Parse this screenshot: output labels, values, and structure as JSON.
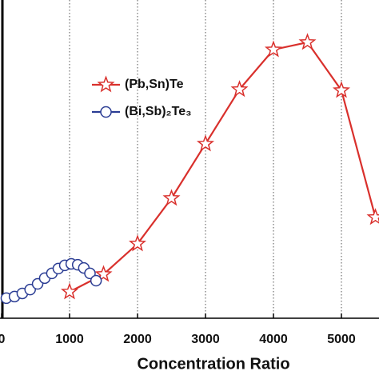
{
  "chart_data": {
    "type": "line",
    "xlabel": "Concentration Ratio",
    "xlim": [
      0,
      5550
    ],
    "xticks": [
      0,
      1000,
      2000,
      3000,
      4000,
      5000
    ],
    "ylim": [
      0,
      100
    ],
    "grid": true,
    "legend": "upper left",
    "series": [
      {
        "name": "(Pb,Sn)Te",
        "color": "#d9302c",
        "marker": "star",
        "x": [
          1000,
          1500,
          2000,
          2500,
          3000,
          3500,
          4000,
          4500,
          5000,
          5500
        ],
        "values": [
          8.3,
          13.8,
          23.4,
          37.7,
          54.8,
          71.9,
          84.4,
          86.7,
          71.6,
          31.7
        ]
      },
      {
        "name": "(Bi,Sb)₂Te₃",
        "color": "#2b3d94",
        "marker": "circle",
        "x": [
          70,
          190,
          305,
          420,
          530,
          635,
          740,
          835,
          930,
          1025,
          1120,
          1210,
          1300,
          1390
        ],
        "values": [
          6.3,
          6.8,
          7.8,
          9.0,
          10.8,
          12.6,
          14.1,
          15.6,
          16.6,
          17.1,
          16.8,
          15.8,
          14.1,
          11.8
        ]
      }
    ]
  }
}
